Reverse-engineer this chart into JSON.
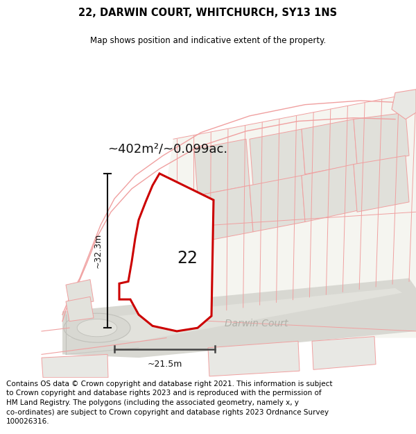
{
  "title": "22, DARWIN COURT, WHITCHURCH, SY13 1NS",
  "subtitle": "Map shows position and indicative extent of the property.",
  "area_label": "~402m²/~0.099ac.",
  "plot_number": "22",
  "dim_vertical": "~32.3m",
  "dim_horizontal": "~21.5m",
  "street_label": "Darwin Court",
  "footer_lines": [
    "Contains OS data © Crown copyright and database right 2021. This information is subject",
    "to Crown copyright and database rights 2023 and is reproduced with the permission of",
    "HM Land Registry. The polygons (including the associated geometry, namely x, y",
    "co-ordinates) are subject to Crown copyright and database rights 2023 Ordnance Survey",
    "100026316."
  ],
  "bg_green": "#e8f0e8",
  "bg_white_plot": "#f0f0ec",
  "road_fill": "#deded8",
  "road_center": "#e8e8e2",
  "plot_outline_color": "#cc0000",
  "plot_fill_color": "#ffffff",
  "faint_line_color": "#f0a0a0",
  "faint_fill_color": "#f0f0ec",
  "cadastral_fill": "#e8e8e4",
  "title_fontsize": 10.5,
  "subtitle_fontsize": 8.5,
  "footer_fontsize": 7.5
}
